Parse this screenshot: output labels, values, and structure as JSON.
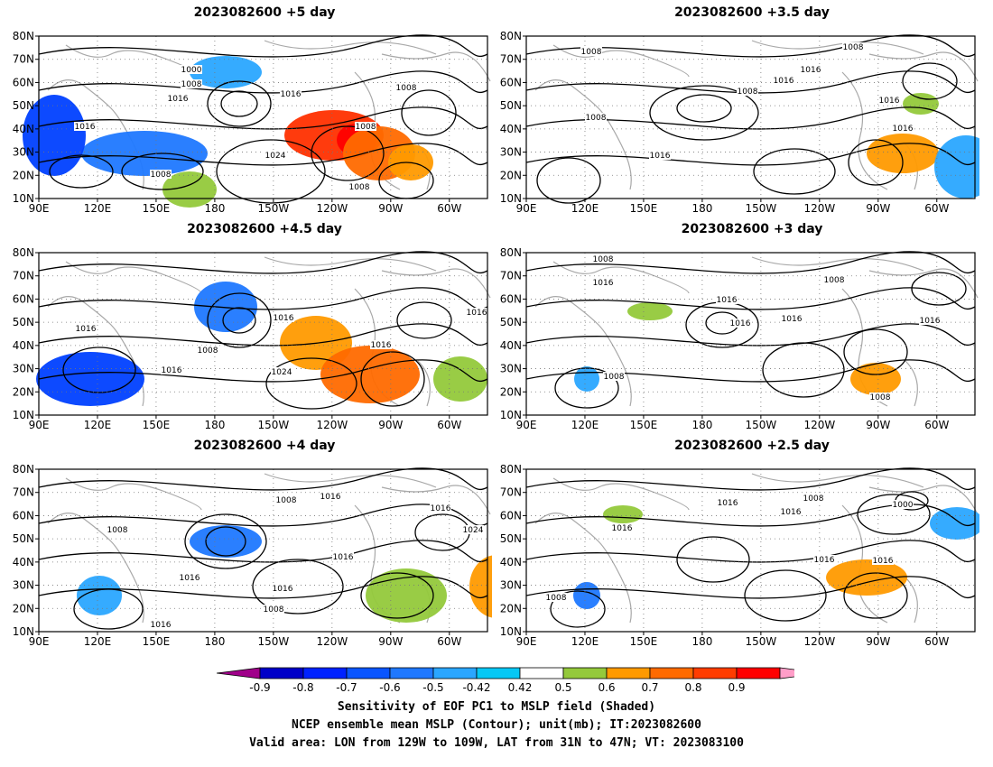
{
  "panels": [
    {
      "title": "2023082600 +5 day",
      "contour_labels": [
        "1000",
        "1008",
        "1016",
        "1016",
        "1016",
        "1008",
        "1008",
        "1024",
        "1008",
        "1008",
        "1008"
      ],
      "shading": [
        {
          "value": 0.8,
          "color": "#ff3000"
        },
        {
          "value": 0.9,
          "color": "#ff0000"
        },
        {
          "value": 0.7,
          "color": "#ff6a00"
        },
        {
          "value": -0.6,
          "color": "#1f78ff"
        },
        {
          "value": -0.7,
          "color": "#0040ff"
        },
        {
          "value": -0.5,
          "color": "#2aa6ff"
        },
        {
          "value": 0.5,
          "color": "#94c93b"
        },
        {
          "value": 0.6,
          "color": "#ff9a00"
        }
      ]
    },
    {
      "title": "2023082600 +3.5 day",
      "contour_labels": [
        "1008",
        "1008",
        "1016",
        "1016",
        "1008",
        "1008",
        "1016",
        "1016",
        "1016"
      ],
      "shading": [
        {
          "value": 0.5,
          "color": "#94c93b"
        },
        {
          "value": 0.6,
          "color": "#ff9a00"
        },
        {
          "value": -0.5,
          "color": "#2aa6ff"
        }
      ]
    },
    {
      "title": "2023082600 +4.5 day",
      "contour_labels": [
        "1016",
        "1008",
        "1016",
        "1016",
        "1024",
        "1016",
        "1016"
      ],
      "shading": [
        {
          "value": 0.6,
          "color": "#ff9a00"
        },
        {
          "value": 0.7,
          "color": "#ff6a00"
        },
        {
          "value": -0.6,
          "color": "#1f78ff"
        },
        {
          "value": -0.7,
          "color": "#0040ff"
        },
        {
          "value": 0.5,
          "color": "#94c93b"
        }
      ]
    },
    {
      "title": "2023082600 +3 day",
      "contour_labels": [
        "1008",
        "1016",
        "1008",
        "1016",
        "1016",
        "1016",
        "1016",
        "1008",
        "1008"
      ],
      "shading": [
        {
          "value": 0.5,
          "color": "#94c93b"
        },
        {
          "value": 0.6,
          "color": "#ff9a00"
        },
        {
          "value": -0.5,
          "color": "#2aa6ff"
        }
      ]
    },
    {
      "title": "2023082600 +4 day",
      "contour_labels": [
        "1008",
        "1016",
        "1016",
        "1008",
        "1016",
        "1024",
        "1016",
        "1008",
        "1016",
        "1016"
      ],
      "shading": [
        {
          "value": 0.5,
          "color": "#94c93b"
        },
        {
          "value": 0.6,
          "color": "#ff9a00"
        },
        {
          "value": -0.6,
          "color": "#1f78ff"
        },
        {
          "value": -0.5,
          "color": "#2aa6ff"
        }
      ]
    },
    {
      "title": "2023082600 +2.5 day",
      "contour_labels": [
        "1008",
        "1016",
        "1016",
        "1016",
        "1000",
        "1016",
        "1016",
        "1008"
      ],
      "shading": [
        {
          "value": 0.5,
          "color": "#94c93b"
        },
        {
          "value": 0.6,
          "color": "#ff9a00"
        },
        {
          "value": -0.5,
          "color": "#2aa6ff"
        },
        {
          "value": -0.6,
          "color": "#1f78ff"
        }
      ]
    }
  ],
  "axes": {
    "lat_labels": [
      "80N",
      "70N",
      "60N",
      "50N",
      "40N",
      "30N",
      "20N",
      "10N"
    ],
    "lon_labels": [
      "90E",
      "120E",
      "150E",
      "180",
      "150W",
      "120W",
      "90W",
      "60W"
    ]
  },
  "colorbar": {
    "colors": [
      "#a0008a",
      "#0000c8",
      "#0022ff",
      "#0a55ff",
      "#1f78ff",
      "#2aa6ff",
      "#05c8f5",
      "#ffffff",
      "#94c93b",
      "#ff9a00",
      "#ff6a00",
      "#ff3c00",
      "#ff0000",
      "#ff9ec8"
    ],
    "labels": [
      "-0.9",
      "-0.8",
      "-0.7",
      "-0.6",
      "-0.5",
      "-0.42",
      "0.42",
      "0.5",
      "0.6",
      "0.7",
      "0.8",
      "0.9"
    ]
  },
  "caption": {
    "line1": "Sensitivity of EOF PC1 to MSLP field (Shaded)",
    "line2": "NCEP ensemble mean MSLP (Contour); unit(mb); IT:2023082600",
    "line3": "Valid area: LON from 129W to 109W, LAT from 31N to 47N; VT: 2023083100"
  }
}
